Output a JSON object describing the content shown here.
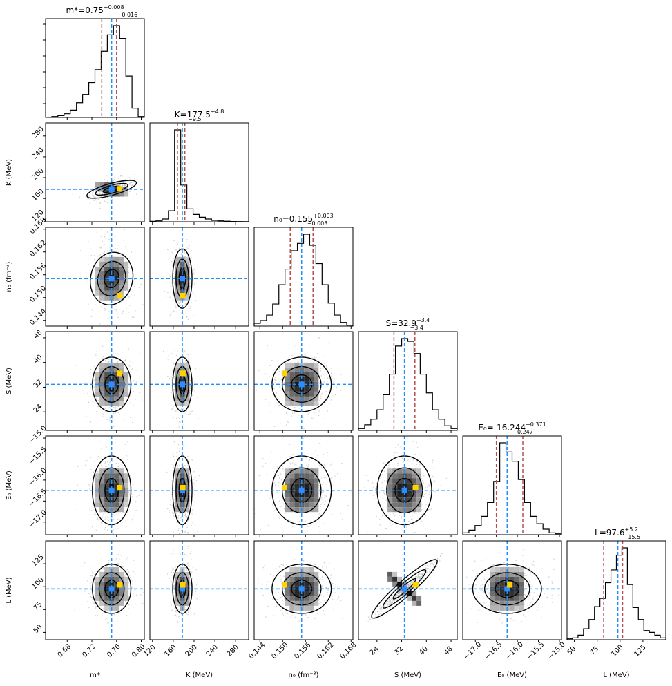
{
  "chart_data": {
    "type": "corner",
    "parameters": [
      {
        "name": "m*",
        "axis_label": "m*",
        "title": "m*=0.75",
        "sup": "+0.008",
        "sub": "−0.016",
        "median": 0.752,
        "q16": 0.736,
        "q84": 0.76,
        "truth": 0.765,
        "range": [
          0.645,
          0.805
        ],
        "ticks": [
          0.68,
          0.72,
          0.76,
          0.8
        ],
        "tick_labels": [
          "0.68",
          "0.72",
          "0.76",
          "0.80"
        ],
        "hist": [
          0.2,
          1,
          2,
          4,
          8,
          16,
          25,
          38,
          52,
          72,
          90,
          100,
          86,
          45,
          10,
          1
        ]
      },
      {
        "name": "K",
        "axis_label": "K (MeV)",
        "title": "K=177.5",
        "sup": "+4.8",
        "sub": "−9.5",
        "median": 177.5,
        "q16": 168.0,
        "q84": 182.3,
        "truth": 178.5,
        "range": [
          115,
          305
        ],
        "ticks": [
          120,
          160,
          200,
          240,
          280
        ],
        "tick_labels": [
          "120",
          "160",
          "200",
          "240",
          "280"
        ],
        "hist": [
          0.5,
          1,
          3,
          12,
          100,
          40,
          14,
          8,
          5,
          3,
          1.5,
          1,
          0.6,
          0.3,
          0.2,
          0.1
        ]
      },
      {
        "name": "n0",
        "axis_label": "n₀ (fm⁻³)",
        "title": "n₀=0.155",
        "sup": "+0.003",
        "sub": "−0.003",
        "median": 0.155,
        "q16": 0.152,
        "q84": 0.158,
        "truth": 0.1505,
        "range": [
          0.1425,
          0.1685
        ],
        "ticks": [
          0.144,
          0.15,
          0.156,
          0.162,
          0.168
        ],
        "tick_labels": [
          "0.144",
          "0.150",
          "0.156",
          "0.162",
          "0.168"
        ],
        "hist": [
          3,
          6,
          12,
          24,
          45,
          62,
          82,
          90,
          100,
          88,
          68,
          45,
          25,
          12,
          4,
          1
        ]
      },
      {
        "name": "S",
        "axis_label": "S (MeV)",
        "title": "S=32.9",
        "sup": "+3.4",
        "sub": "−3.4",
        "median": 32.9,
        "q16": 29.5,
        "q84": 36.3,
        "truth": 36.5,
        "range": [
          18,
          50
        ],
        "ticks": [
          24,
          32,
          40,
          48
        ],
        "tick_labels": [
          "24",
          "32",
          "40",
          "48"
        ],
        "hist": [
          2,
          6,
          12,
          22,
          38,
          60,
          90,
          98,
          95,
          82,
          60,
          40,
          22,
          12,
          5,
          2
        ]
      },
      {
        "name": "E0",
        "axis_label": "E₀ (MeV)",
        "title": "E₀=-16.244",
        "sup": "+0.371",
        "sub": "−0.247",
        "median": -16.244,
        "q16": -16.5,
        "q84": -15.87,
        "truth": -16.18,
        "range": [
          -17.3,
          -14.95
        ],
        "ticks": [
          -17.0,
          -16.5,
          -16.0,
          -15.5,
          -15.0
        ],
        "tick_labels": [
          "−17.0",
          "−16.5",
          "−16.0",
          "−15.5",
          "−15.0"
        ],
        "hist": [
          2,
          5,
          10,
          20,
          35,
          58,
          100,
          90,
          80,
          60,
          35,
          20,
          12,
          6,
          2,
          1
        ]
      },
      {
        "name": "L",
        "axis_label": "L (MeV)",
        "title": "L=97.6",
        "sup": "+5.2",
        "sub": "−15.5",
        "median": 97.6,
        "q16": 82.1,
        "q84": 102.8,
        "truth": 102.0,
        "range": [
          42,
          150
        ],
        "ticks": [
          50,
          75,
          100,
          125
        ],
        "tick_labels": [
          "50",
          "75",
          "100",
          "125"
        ],
        "hist": [
          1,
          2,
          5,
          12,
          22,
          36,
          45,
          62,
          76,
          92,
          100,
          60,
          35,
          22,
          10,
          8,
          5,
          2
        ]
      }
    ],
    "y_tick_sets": {
      "K": {
        "ticks": [
          120,
          160,
          200,
          240,
          280
        ],
        "tick_labels": [
          "120",
          "160",
          "200",
          "240",
          "280"
        ]
      },
      "n0": {
        "ticks": [
          0.144,
          0.15,
          0.156,
          0.162,
          0.168
        ],
        "tick_labels": [
          "0.144",
          "0.150",
          "0.156",
          "0.162",
          "0.168"
        ]
      },
      "S": {
        "ticks": [
          24,
          32,
          40,
          48
        ],
        "tick_labels": [
          "24",
          "32",
          "40",
          "48"
        ]
      },
      "E0": {
        "ticks": [
          -17.0,
          -16.5,
          -16.0,
          -15.5,
          -15.0
        ],
        "tick_labels": [
          "−17.0",
          "−16.5",
          "−16.0",
          "−15.5",
          "−15.0"
        ]
      },
      "L": {
        "ticks": [
          50,
          75,
          100,
          125
        ],
        "tick_labels": [
          "50",
          "75",
          "100",
          "125"
        ]
      }
    },
    "correlations": {
      "K|m*": 0.55,
      "S|L": 0.98,
      "n0|m*": -0.15
    },
    "colors": {
      "median_line": "#1f77b4",
      "truth_line": "#1e90ff",
      "quantile_line": "#b25050",
      "truth_marker": "#ffd200",
      "median_marker": "#2d8cff",
      "contour": "#000000",
      "samples": "#a0a0a0"
    }
  }
}
